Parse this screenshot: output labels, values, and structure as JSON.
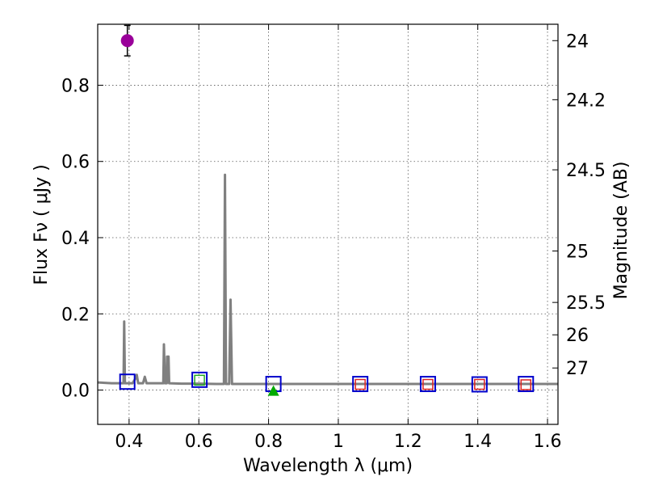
{
  "chart_data": {
    "type": "scatter",
    "xlabel": "Wavelength  λ (μm)",
    "ylabel": "Flux  Fν  ( μJy )",
    "ylabel_right": "Magnitude (AB)",
    "xlim": [
      0.31,
      1.63
    ],
    "ylim": [
      -0.09,
      0.96
    ],
    "grid": true,
    "x_ticks": [
      {
        "value": 0.4,
        "label": "0.4"
      },
      {
        "value": 0.6,
        "label": "0.6"
      },
      {
        "value": 0.8,
        "label": "0.8"
      },
      {
        "value": 1.0,
        "label": "1"
      },
      {
        "value": 1.2,
        "label": "1.2"
      },
      {
        "value": 1.4,
        "label": "1.4"
      },
      {
        "value": 1.6,
        "label": "1.6"
      }
    ],
    "y_ticks": [
      {
        "value": 0.0,
        "label": "0.0"
      },
      {
        "value": 0.2,
        "label": "0.2"
      },
      {
        "value": 0.4,
        "label": "0.4"
      },
      {
        "value": 0.6,
        "label": "0.6"
      },
      {
        "value": 0.8,
        "label": "0.8"
      }
    ],
    "right_ticks": [
      {
        "label": "24",
        "flux": 0.917
      },
      {
        "label": "24.2",
        "flux": 0.762
      },
      {
        "label": "24.5",
        "flux": 0.578
      },
      {
        "label": "25",
        "flux": 0.365
      },
      {
        "label": "25.5",
        "flux": 0.23
      },
      {
        "label": "26",
        "flux": 0.145
      },
      {
        "label": "27",
        "flux": 0.058
      }
    ],
    "series": [
      {
        "type": "line",
        "color": "#808080",
        "points": [
          [
            0.31,
            0.02
          ],
          [
            0.33,
            0.019
          ],
          [
            0.35,
            0.018
          ],
          [
            0.37,
            0.018
          ],
          [
            0.38,
            0.018
          ],
          [
            0.384,
            0.018
          ],
          [
            0.386,
            0.18
          ],
          [
            0.388,
            0.018
          ],
          [
            0.4,
            0.018
          ],
          [
            0.41,
            0.018
          ],
          [
            0.418,
            0.03
          ],
          [
            0.422,
            0.04
          ],
          [
            0.426,
            0.018
          ],
          [
            0.44,
            0.018
          ],
          [
            0.445,
            0.035
          ],
          [
            0.45,
            0.018
          ],
          [
            0.47,
            0.018
          ],
          [
            0.49,
            0.018
          ],
          [
            0.498,
            0.018
          ],
          [
            0.5,
            0.12
          ],
          [
            0.503,
            0.018
          ],
          [
            0.508,
            0.018
          ],
          [
            0.509,
            0.088
          ],
          [
            0.511,
            0.04
          ],
          [
            0.513,
            0.088
          ],
          [
            0.515,
            0.018
          ],
          [
            0.55,
            0.017
          ],
          [
            0.6,
            0.017
          ],
          [
            0.65,
            0.016
          ],
          [
            0.672,
            0.016
          ],
          [
            0.675,
            0.565
          ],
          [
            0.678,
            0.016
          ],
          [
            0.687,
            0.016
          ],
          [
            0.691,
            0.237
          ],
          [
            0.695,
            0.016
          ],
          [
            0.75,
            0.016
          ],
          [
            0.8,
            0.016
          ],
          [
            0.85,
            0.016
          ],
          [
            0.9,
            0.016
          ],
          [
            0.95,
            0.016
          ],
          [
            1.0,
            0.016
          ],
          [
            1.1,
            0.016
          ],
          [
            1.2,
            0.016
          ],
          [
            1.3,
            0.016
          ],
          [
            1.4,
            0.016
          ],
          [
            1.5,
            0.016
          ],
          [
            1.63,
            0.016
          ]
        ]
      },
      {
        "type": "model_squares",
        "color": "#0000cc",
        "points": [
          [
            0.395,
            0.022
          ],
          [
            0.602,
            0.027
          ],
          [
            0.814,
            0.016
          ],
          [
            1.063,
            0.016
          ],
          [
            1.257,
            0.016
          ],
          [
            1.405,
            0.015
          ],
          [
            1.538,
            0.016
          ]
        ]
      },
      {
        "type": "obs_squares",
        "color": "#dd2222",
        "points": [
          [
            1.063,
            0.015
          ],
          [
            1.257,
            0.015
          ],
          [
            1.405,
            0.015
          ],
          [
            1.538,
            0.014
          ]
        ]
      },
      {
        "type": "obs_squares",
        "color": "#22aa22",
        "points": [
          [
            0.602,
            0.026
          ]
        ]
      },
      {
        "type": "detection",
        "color": "#990099",
        "points": [
          [
            0.395,
            0.917
          ]
        ],
        "errors": [
          0.04
        ]
      },
      {
        "type": "upper_limit",
        "color": "#00aa00",
        "points": [
          [
            0.814,
            0.0
          ]
        ]
      }
    ]
  }
}
